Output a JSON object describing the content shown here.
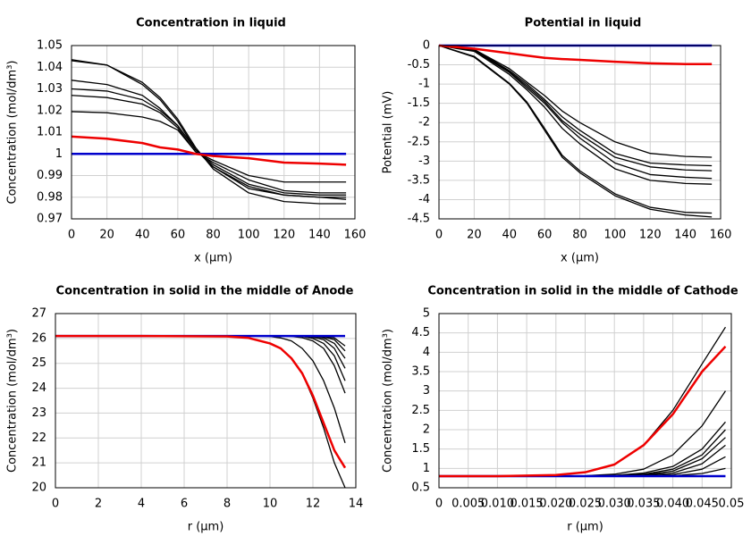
{
  "chart_data": [
    {
      "type": "line",
      "title": "Concentration in liquid",
      "xlabel": "x (µm)",
      "ylabel": "Concentration (mol/dm³)",
      "x": [
        0,
        20,
        40,
        50,
        60,
        70,
        80,
        100,
        120,
        140,
        155
      ],
      "xlim": [
        0,
        160
      ],
      "xticks": [
        0,
        20,
        40,
        60,
        80,
        100,
        120,
        140,
        160
      ],
      "ylim": [
        0.97,
        1.05
      ],
      "yticks": [
        0.97,
        0.98,
        0.99,
        1,
        1.01,
        1.02,
        1.03,
        1.04,
        1.05
      ],
      "grid": true,
      "series": [
        {
          "color": "#000000",
          "linewidth": 1.3,
          "values": [
            1.043,
            1.041,
            1.033,
            1.026,
            1.016,
            1.003,
            0.993,
            0.982,
            0.978,
            0.977,
            0.977
          ]
        },
        {
          "color": "#000000",
          "linewidth": 1.3,
          "values": [
            1.0435,
            1.041,
            1.032,
            1.025,
            1.015,
            1.002,
            0.994,
            0.985,
            0.981,
            0.98,
            0.979
          ]
        },
        {
          "color": "#000000",
          "linewidth": 1.3,
          "values": [
            1.034,
            1.032,
            1.027,
            1.021,
            1.013,
            1.002,
            0.994,
            0.984,
            0.981,
            0.98,
            0.98
          ]
        },
        {
          "color": "#000000",
          "linewidth": 1.3,
          "values": [
            1.03,
            1.029,
            1.025,
            1.02,
            1.013,
            1.002,
            0.995,
            0.986,
            0.982,
            0.981,
            0.981
          ]
        },
        {
          "color": "#000000",
          "linewidth": 1.3,
          "values": [
            1.027,
            1.026,
            1.023,
            1.019,
            1.012,
            1.001,
            0.996,
            0.988,
            0.983,
            0.982,
            0.982
          ]
        },
        {
          "color": "#000000",
          "linewidth": 1.3,
          "values": [
            1.0195,
            1.019,
            1.017,
            1.015,
            1.011,
            1.001,
            0.997,
            0.99,
            0.987,
            0.987,
            0.987
          ]
        },
        {
          "color": "#0000cc",
          "linewidth": 2.5,
          "values": [
            1,
            1,
            1,
            1,
            1,
            1,
            1,
            1,
            1,
            1,
            1
          ]
        },
        {
          "color": "#ee0000",
          "linewidth": 2.5,
          "values": [
            1.008,
            1.007,
            1.005,
            1.003,
            1.002,
            1,
            0.999,
            0.998,
            0.996,
            0.9955,
            0.995
          ]
        }
      ]
    },
    {
      "type": "line",
      "title": "Potential in liquid",
      "xlabel": "x (µm)",
      "ylabel": "Potential (mV)",
      "x": [
        0,
        20,
        40,
        50,
        60,
        70,
        80,
        100,
        120,
        140,
        155
      ],
      "xlim": [
        0,
        160
      ],
      "xticks": [
        0,
        20,
        40,
        60,
        80,
        100,
        120,
        140,
        160
      ],
      "ylim": [
        -4.5,
        0
      ],
      "yticks": [
        -4.5,
        -4,
        -3.5,
        -3,
        -2.5,
        -2,
        -1.5,
        -1,
        -0.5,
        0
      ],
      "grid": true,
      "series": [
        {
          "color": "#000000",
          "linewidth": 1.3,
          "values": [
            0,
            -0.3,
            -1,
            -1.5,
            -2.2,
            -2.9,
            -3.3,
            -3.9,
            -4.25,
            -4.4,
            -4.45
          ]
        },
        {
          "color": "#000000",
          "linewidth": 1.3,
          "values": [
            0,
            -0.28,
            -0.98,
            -1.47,
            -2.15,
            -2.85,
            -3.25,
            -3.85,
            -4.2,
            -4.33,
            -4.35
          ]
        },
        {
          "color": "#000000",
          "linewidth": 1.3,
          "values": [
            0,
            -0.15,
            -0.75,
            -1.15,
            -1.6,
            -2.15,
            -2.55,
            -3.2,
            -3.5,
            -3.58,
            -3.6
          ]
        },
        {
          "color": "#000000",
          "linewidth": 1.3,
          "values": [
            0,
            -0.13,
            -0.7,
            -1.1,
            -1.5,
            -2.0,
            -2.4,
            -3.05,
            -3.35,
            -3.42,
            -3.45
          ]
        },
        {
          "color": "#000000",
          "linewidth": 1.3,
          "values": [
            0,
            -0.12,
            -0.68,
            -1.05,
            -1.45,
            -1.95,
            -2.3,
            -2.9,
            -3.15,
            -3.23,
            -3.25
          ]
        },
        {
          "color": "#000000",
          "linewidth": 1.3,
          "values": [
            0,
            -0.11,
            -0.65,
            -1.0,
            -1.4,
            -1.85,
            -2.2,
            -2.8,
            -3.05,
            -3.1,
            -3.12
          ]
        },
        {
          "color": "#000000",
          "linewidth": 1.3,
          "values": [
            0,
            -0.1,
            -0.6,
            -0.95,
            -1.3,
            -1.7,
            -2.0,
            -2.5,
            -2.8,
            -2.88,
            -2.9
          ]
        },
        {
          "color": "#0000cc",
          "linewidth": 2.5,
          "values": [
            0,
            0,
            0,
            0,
            0,
            0,
            0,
            0,
            0,
            0,
            0
          ]
        },
        {
          "color": "#ee0000",
          "linewidth": 2.5,
          "values": [
            0,
            -0.08,
            -0.2,
            -0.26,
            -0.32,
            -0.35,
            -0.37,
            -0.42,
            -0.46,
            -0.48,
            -0.48
          ]
        }
      ]
    },
    {
      "type": "line",
      "title": "Concentration in solid in the middle of Anode",
      "xlabel": "r (µm)",
      "ylabel": "Concentration (mol/dm³)",
      "x": [
        0,
        4,
        8,
        9,
        10,
        10.5,
        11,
        11.5,
        12,
        12.5,
        13,
        13.5
      ],
      "xlim": [
        0,
        14
      ],
      "xticks": [
        0,
        2,
        4,
        6,
        8,
        10,
        12,
        14
      ],
      "ylim": [
        20,
        27
      ],
      "yticks": [
        20,
        21,
        22,
        23,
        24,
        25,
        26,
        27
      ],
      "grid": true,
      "series": [
        {
          "color": "#000000",
          "linewidth": 1.3,
          "values": [
            26.1,
            26.1,
            26.08,
            26.02,
            25.8,
            25.6,
            25.2,
            24.6,
            23.6,
            22.4,
            21.0,
            20.0
          ]
        },
        {
          "color": "#000000",
          "linewidth": 1.3,
          "values": [
            26.1,
            26.1,
            26.1,
            26.1,
            26.08,
            26.02,
            25.9,
            25.6,
            25.1,
            24.3,
            23.2,
            21.8
          ]
        },
        {
          "color": "#000000",
          "linewidth": 1.3,
          "values": [
            26.1,
            26.1,
            26.1,
            26.1,
            26.1,
            26.1,
            26.08,
            26.03,
            25.9,
            25.6,
            24.9,
            23.8
          ]
        },
        {
          "color": "#000000",
          "linewidth": 1.3,
          "values": [
            26.1,
            26.1,
            26.1,
            26.1,
            26.1,
            26.1,
            26.1,
            26.08,
            26.0,
            25.8,
            25.3,
            24.3
          ]
        },
        {
          "color": "#000000",
          "linewidth": 1.3,
          "values": [
            26.1,
            26.1,
            26.1,
            26.1,
            26.1,
            26.1,
            26.1,
            26.1,
            26.05,
            25.95,
            25.6,
            24.8
          ]
        },
        {
          "color": "#000000",
          "linewidth": 1.3,
          "values": [
            26.1,
            26.1,
            26.1,
            26.1,
            26.1,
            26.1,
            26.1,
            26.1,
            26.08,
            26.02,
            25.8,
            25.2
          ]
        },
        {
          "color": "#000000",
          "linewidth": 1.3,
          "values": [
            26.1,
            26.1,
            26.1,
            26.1,
            26.1,
            26.1,
            26.1,
            26.1,
            26.1,
            26.06,
            25.95,
            25.5
          ]
        },
        {
          "color": "#000000",
          "linewidth": 1.3,
          "values": [
            26.1,
            26.1,
            26.1,
            26.1,
            26.1,
            26.1,
            26.1,
            26.1,
            26.1,
            26.08,
            26.02,
            25.7
          ]
        },
        {
          "color": "#0000cc",
          "linewidth": 2.5,
          "values": [
            26.1,
            26.1,
            26.1,
            26.1,
            26.1,
            26.1,
            26.1,
            26.1,
            26.1,
            26.1,
            26.1,
            26.1
          ]
        },
        {
          "color": "#ee0000",
          "linewidth": 2.5,
          "values": [
            26.1,
            26.1,
            26.08,
            26.02,
            25.8,
            25.6,
            25.2,
            24.6,
            23.7,
            22.6,
            21.5,
            20.8
          ]
        }
      ]
    },
    {
      "type": "line",
      "title": "Concentration in solid in the middle of Cathode",
      "xlabel": "r (µm)",
      "ylabel": "Concentration (mol/dm³)",
      "x": [
        0,
        0.01,
        0.02,
        0.025,
        0.03,
        0.035,
        0.04,
        0.045,
        0.049
      ],
      "xlim": [
        0,
        0.05
      ],
      "xticks": [
        0,
        0.005,
        {
          "value": 0.01,
          "label": "0.010"
        },
        0.015,
        {
          "value": 0.02,
          "label": "0.020"
        },
        0.025,
        {
          "value": 0.03,
          "label": "0.030"
        },
        0.035,
        {
          "value": 0.04,
          "label": "0.040"
        },
        0.045,
        0.05
      ],
      "ylim": [
        0.5,
        5
      ],
      "yticks": [
        0.5,
        1,
        1.5,
        2,
        2.5,
        3,
        3.5,
        4,
        4.5,
        5
      ],
      "grid": true,
      "series": [
        {
          "color": "#000000",
          "linewidth": 1.3,
          "values": [
            0.8,
            0.8,
            0.83,
            0.9,
            1.1,
            1.6,
            2.5,
            3.7,
            4.65
          ]
        },
        {
          "color": "#000000",
          "linewidth": 1.3,
          "values": [
            0.8,
            0.8,
            0.8,
            0.81,
            0.85,
            0.98,
            1.35,
            2.1,
            3.0
          ]
        },
        {
          "color": "#000000",
          "linewidth": 1.3,
          "values": [
            0.8,
            0.8,
            0.8,
            0.8,
            0.82,
            0.88,
            1.05,
            1.5,
            2.2
          ]
        },
        {
          "color": "#000000",
          "linewidth": 1.3,
          "values": [
            0.8,
            0.8,
            0.8,
            0.8,
            0.81,
            0.85,
            0.98,
            1.35,
            2.0
          ]
        },
        {
          "color": "#000000",
          "linewidth": 1.3,
          "values": [
            0.8,
            0.8,
            0.8,
            0.8,
            0.8,
            0.83,
            0.93,
            1.25,
            1.8
          ]
        },
        {
          "color": "#000000",
          "linewidth": 1.3,
          "values": [
            0.8,
            0.8,
            0.8,
            0.8,
            0.8,
            0.82,
            0.88,
            1.12,
            1.6
          ]
        },
        {
          "color": "#000000",
          "linewidth": 1.3,
          "values": [
            0.8,
            0.8,
            0.8,
            0.8,
            0.8,
            0.81,
            0.84,
            0.98,
            1.3
          ]
        },
        {
          "color": "#000000",
          "linewidth": 1.3,
          "values": [
            0.8,
            0.8,
            0.8,
            0.8,
            0.8,
            0.8,
            0.81,
            0.87,
            1.0
          ]
        },
        {
          "color": "#0000cc",
          "linewidth": 2.5,
          "values": [
            0.8,
            0.8,
            0.8,
            0.8,
            0.8,
            0.8,
            0.8,
            0.8,
            0.8
          ]
        },
        {
          "color": "#ee0000",
          "linewidth": 2.5,
          "values": [
            0.8,
            0.8,
            0.83,
            0.9,
            1.1,
            1.6,
            2.4,
            3.5,
            4.15
          ]
        }
      ]
    }
  ]
}
